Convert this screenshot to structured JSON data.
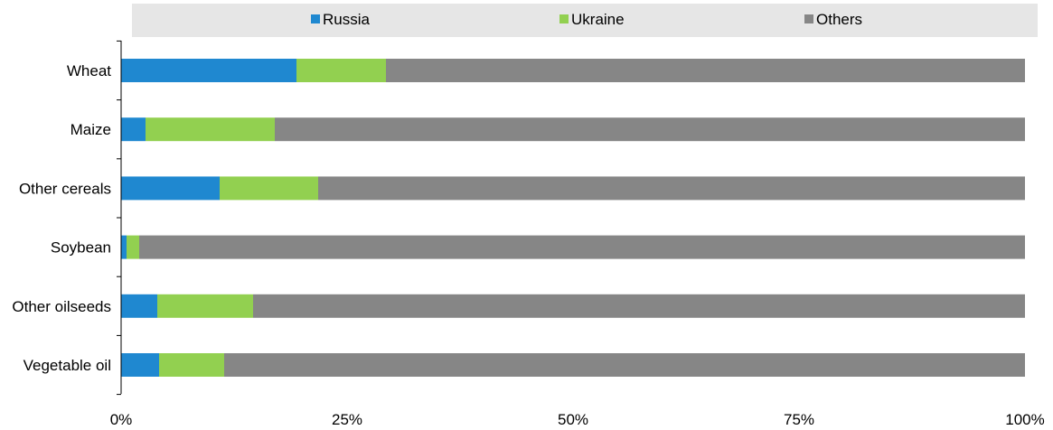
{
  "chart_data": {
    "type": "bar",
    "orientation": "horizontal",
    "stacked": true,
    "categories": [
      "Wheat",
      "Maize",
      "Other cereals",
      "Soybean",
      "Other oilseeds",
      "Vegetable oil"
    ],
    "series": [
      {
        "name": "Russia",
        "values": [
          19.4,
          2.7,
          10.9,
          0.6,
          4.0,
          4.2
        ],
        "color": "#1f88d0"
      },
      {
        "name": "Ukraine",
        "values": [
          9.9,
          14.3,
          10.9,
          1.4,
          10.6,
          7.2
        ],
        "color": "#92d050"
      },
      {
        "name": "Others",
        "values": [
          70.7,
          83.0,
          78.2,
          98.0,
          85.4,
          88.6
        ],
        "color": "#868686"
      }
    ],
    "x_ticks": [
      "0%",
      "25%",
      "50%",
      "75%",
      "100%"
    ],
    "xlim": [
      0,
      100
    ],
    "legend_position": "top",
    "grid": true
  }
}
